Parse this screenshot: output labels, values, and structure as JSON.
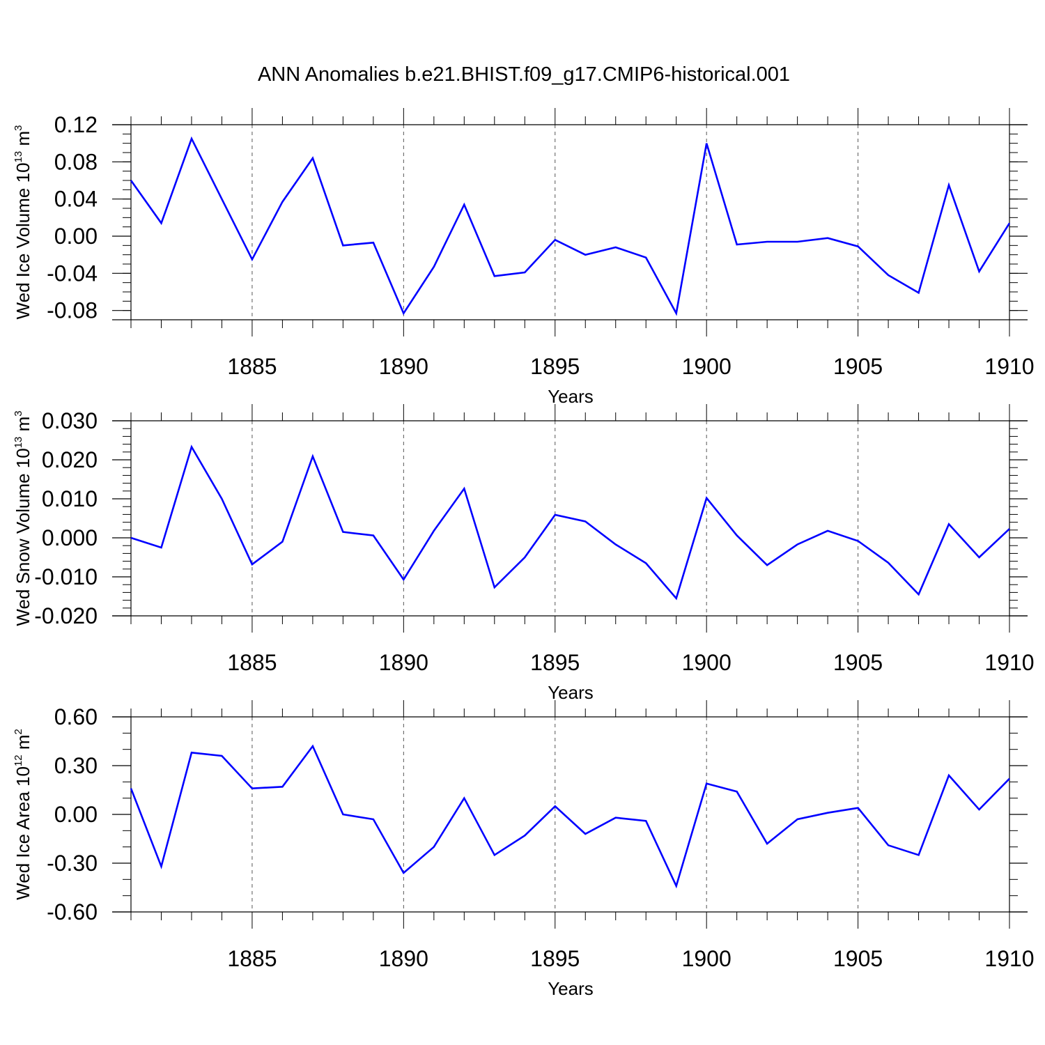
{
  "title": "ANN Anomalies b.e21.BHIST.f09_g17.CMIP6-historical.001",
  "line_color": "#0000ff",
  "chart_data": [
    {
      "type": "line",
      "title": "ANN Anomalies b.e21.BHIST.f09_g17.CMIP6-historical.001",
      "ylabel": {
        "text": "Wed Ice Volume 10",
        "sup": "13",
        "unit": " m",
        "unit_sup": "3"
      },
      "xlabel": "Years",
      "xlim": [
        1881,
        1910
      ],
      "ylim": [
        -0.09,
        0.12
      ],
      "xticks": [
        1885,
        1890,
        1895,
        1900,
        1905,
        1910
      ],
      "xtick_labels": [
        "1885",
        "1890",
        "1895",
        "1900",
        "1905",
        "1910"
      ],
      "yticks": [
        -0.08,
        -0.04,
        0.0,
        0.04,
        0.08,
        0.12
      ],
      "ytick_labels": [
        "-0.08",
        "-0.04",
        "0.00",
        "0.04",
        "0.08",
        "0.12"
      ],
      "y_minor_step": 0.01,
      "grid": "x-major-dashed",
      "x": [
        1881,
        1882,
        1883,
        1884,
        1885,
        1886,
        1887,
        1888,
        1889,
        1890,
        1891,
        1892,
        1893,
        1894,
        1895,
        1896,
        1897,
        1898,
        1899,
        1900,
        1901,
        1902,
        1903,
        1904,
        1905,
        1906,
        1907,
        1908,
        1909,
        1910
      ],
      "y": [
        0.06,
        0.014,
        0.105,
        0.04,
        -0.025,
        0.037,
        0.084,
        -0.01,
        -0.007,
        -0.083,
        -0.033,
        0.034,
        -0.043,
        -0.039,
        -0.004,
        -0.02,
        -0.012,
        -0.023,
        -0.083,
        0.1,
        -0.009,
        -0.006,
        -0.006,
        -0.002,
        -0.011,
        -0.042,
        -0.061,
        0.055,
        -0.038,
        0.014
      ]
    },
    {
      "type": "line",
      "ylabel": {
        "text": "Wed Snow Volume 10",
        "sup": "13",
        "unit": " m",
        "unit_sup": "3"
      },
      "xlabel": "Years",
      "xlim": [
        1881,
        1910
      ],
      "ylim": [
        -0.02,
        0.03
      ],
      "xticks": [
        1885,
        1890,
        1895,
        1900,
        1905,
        1910
      ],
      "xtick_labels": [
        "1885",
        "1890",
        "1895",
        "1900",
        "1905",
        "1910"
      ],
      "yticks": [
        -0.02,
        -0.01,
        0.0,
        0.01,
        0.02,
        0.03
      ],
      "ytick_labels": [
        "-0.020",
        "-0.010",
        "0.000",
        "0.010",
        "0.020",
        "0.030"
      ],
      "y_minor_step": 0.002,
      "grid": "x-major-dashed",
      "x": [
        1881,
        1882,
        1883,
        1884,
        1885,
        1886,
        1887,
        1888,
        1889,
        1890,
        1891,
        1892,
        1893,
        1894,
        1895,
        1896,
        1897,
        1898,
        1899,
        1900,
        1901,
        1902,
        1903,
        1904,
        1905,
        1906,
        1907,
        1908,
        1909,
        1910
      ],
      "y": [
        0.0,
        -0.0025,
        0.0233,
        0.01,
        -0.0068,
        -0.001,
        0.0209,
        0.0015,
        0.0006,
        -0.0107,
        0.0018,
        0.0126,
        -0.0127,
        -0.005,
        0.0059,
        0.0042,
        -0.0017,
        -0.0065,
        -0.0155,
        0.0102,
        0.0006,
        -0.007,
        -0.0017,
        0.0018,
        -0.0008,
        -0.0064,
        -0.0145,
        0.0035,
        -0.005,
        0.0023
      ]
    },
    {
      "type": "line",
      "ylabel": {
        "text": "Wed Ice Area 10",
        "sup": "12",
        "unit": " m",
        "unit_sup": "2"
      },
      "xlabel": "Years",
      "xlim": [
        1881,
        1910
      ],
      "ylim": [
        -0.6,
        0.6
      ],
      "xticks": [
        1885,
        1890,
        1895,
        1900,
        1905,
        1910
      ],
      "xtick_labels": [
        "1885",
        "1890",
        "1895",
        "1900",
        "1905",
        "1910"
      ],
      "yticks": [
        -0.6,
        -0.3,
        0.0,
        0.3,
        0.6
      ],
      "ytick_labels": [
        "-0.60",
        "-0.30",
        "0.00",
        "0.30",
        "0.60"
      ],
      "y_minor_step": 0.1,
      "grid": "x-major-dashed",
      "x": [
        1881,
        1882,
        1883,
        1884,
        1885,
        1886,
        1887,
        1888,
        1889,
        1890,
        1891,
        1892,
        1893,
        1894,
        1895,
        1896,
        1897,
        1898,
        1899,
        1900,
        1901,
        1902,
        1903,
        1904,
        1905,
        1906,
        1907,
        1908,
        1909,
        1910
      ],
      "y": [
        0.16,
        -0.32,
        0.38,
        0.36,
        0.16,
        0.17,
        0.42,
        0.0,
        -0.03,
        -0.36,
        -0.2,
        0.1,
        -0.25,
        -0.13,
        0.05,
        -0.12,
        -0.02,
        -0.04,
        -0.44,
        0.19,
        0.14,
        -0.18,
        -0.03,
        0.01,
        0.04,
        -0.19,
        -0.25,
        0.24,
        0.03,
        0.22
      ]
    }
  ]
}
